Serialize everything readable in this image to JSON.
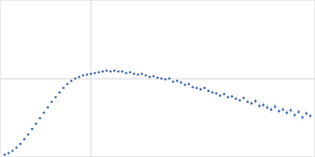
{
  "chart_data": {
    "type": "scatter",
    "x": [
      5,
      10,
      15,
      20,
      25,
      30,
      35,
      40,
      45,
      50,
      55,
      60,
      65,
      70,
      75,
      80,
      85,
      90,
      95,
      100,
      105,
      110,
      115,
      120,
      125,
      130,
      135,
      140,
      145,
      150,
      155,
      160,
      165,
      170,
      175,
      180,
      185,
      190,
      195,
      200,
      205,
      210,
      215,
      220,
      225,
      230,
      235,
      240,
      245,
      250,
      255,
      260,
      265,
      270,
      275,
      280,
      285,
      290,
      295,
      300,
      305,
      310,
      315,
      320,
      325,
      330,
      335,
      340,
      345,
      350,
      355,
      360,
      365,
      370,
      375,
      380,
      385,
      390,
      395
    ],
    "values": [
      2,
      4,
      7,
      11,
      16,
      22,
      28,
      35,
      42,
      49,
      56,
      63,
      70,
      76,
      82,
      88,
      93,
      97,
      100,
      102,
      104,
      105,
      106,
      107,
      108,
      109,
      110,
      109,
      110,
      109,
      109,
      107,
      108,
      106,
      105,
      106,
      104,
      102,
      103,
      101,
      100,
      99,
      100,
      96,
      97,
      95,
      92,
      93,
      89,
      88,
      86,
      88,
      84,
      82,
      81,
      78,
      80,
      76,
      77,
      74,
      72,
      75,
      70,
      68,
      71,
      65,
      66,
      63,
      60,
      64,
      58,
      60,
      56,
      59,
      53,
      57,
      50,
      55,
      52
    ],
    "error": [
      0.5,
      0.5,
      0.5,
      0.5,
      0.5,
      0.5,
      0.5,
      0.5,
      0.5,
      0.5,
      0.5,
      0.5,
      0.5,
      0.5,
      0.5,
      0.5,
      0.5,
      0.5,
      0.5,
      0.5,
      0.5,
      0.5,
      0.5,
      0.5,
      0.5,
      0.5,
      0.5,
      0.5,
      0.5,
      0.5,
      1,
      1,
      1,
      1,
      1,
      1,
      1,
      1,
      1,
      1,
      1,
      1,
      1,
      1,
      1,
      1,
      1,
      1,
      1,
      1,
      2,
      2,
      2,
      2,
      2,
      2,
      2,
      2,
      2,
      2,
      2,
      2,
      2,
      2,
      4,
      4,
      4,
      4,
      4,
      4,
      4,
      4,
      4,
      4,
      4,
      4,
      4,
      4,
      4
    ],
    "xlim": [
      0,
      400
    ],
    "ylim": [
      0,
      200
    ],
    "xticks": [
      115
    ],
    "yticks": [
      100
    ],
    "grid": true,
    "tick_labels": false,
    "color": "#3a64b4",
    "marker": "circle"
  }
}
